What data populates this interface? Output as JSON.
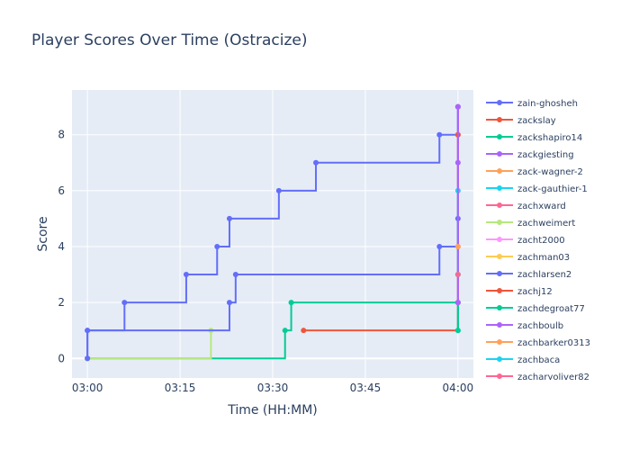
{
  "chart_data": {
    "type": "line",
    "line_shape": "step",
    "title": "Player Scores Over Time (Ostracize)",
    "xlabel": "Time (HH:MM)",
    "ylabel": "Score",
    "x_ticks": [
      "03:00",
      "03:15",
      "03:30",
      "03:45",
      "04:00"
    ],
    "x_ticks_minutes": [
      0,
      15,
      30,
      45,
      60
    ],
    "xlim_minutes": [
      -2.5,
      62.5
    ],
    "y_ticks": [
      0,
      2,
      4,
      6,
      8
    ],
    "ylim": [
      -0.7,
      9.6
    ],
    "grid": true,
    "legend_position": "right",
    "plot_bg": "#e5ecf6",
    "series": [
      {
        "name": "zain-ghosheh",
        "color": "#636efa",
        "points": [
          [
            "03:00",
            0
          ],
          [
            "03:00",
            1
          ],
          [
            "03:06",
            2
          ],
          [
            "03:16",
            3
          ],
          [
            "03:21",
            4
          ],
          [
            "03:23",
            5
          ],
          [
            "03:31",
            6
          ],
          [
            "03:37",
            7
          ],
          [
            "03:57",
            8
          ],
          [
            "04:00",
            9
          ]
        ]
      },
      {
        "name": "zackslay",
        "color": "#ef553b",
        "points": [
          [
            "03:35",
            1
          ],
          [
            "04:00",
            8
          ]
        ]
      },
      {
        "name": "zackshapiro14",
        "color": "#00cc96",
        "points": [
          [
            "03:00",
            0
          ],
          [
            "03:32",
            1
          ],
          [
            "03:33",
            2
          ],
          [
            "04:00",
            1
          ]
        ]
      },
      {
        "name": "zackgiesting",
        "color": "#ab63fa",
        "points": [
          [
            "04:00",
            2
          ],
          [
            "04:00",
            7
          ],
          [
            "04:00",
            9
          ]
        ]
      },
      {
        "name": "zack-wagner-2",
        "color": "#ffa15a",
        "points": [
          [
            "04:00",
            4
          ]
        ]
      },
      {
        "name": "zack-gauthier-1",
        "color": "#19d3f3",
        "points": [
          [
            "04:00",
            3
          ],
          [
            "04:00",
            6
          ]
        ]
      },
      {
        "name": "zachxward",
        "color": "#ff6692",
        "points": [
          [
            "04:00",
            2
          ]
        ]
      },
      {
        "name": "zachweimert",
        "color": "#b6e880",
        "points": [
          [
            "03:00",
            0
          ],
          [
            "03:20",
            1
          ]
        ]
      },
      {
        "name": "zacht2000",
        "color": "#ff97ff",
        "points": [
          [
            "04:00",
            4
          ]
        ]
      },
      {
        "name": "zachman03",
        "color": "#fecb52",
        "points": [
          [
            "03:00",
            0
          ]
        ]
      },
      {
        "name": "zachlarsen2",
        "color": "#636efa",
        "points": [
          [
            "03:00",
            0
          ],
          [
            "03:00",
            1
          ],
          [
            "03:23",
            2
          ],
          [
            "03:24",
            3
          ],
          [
            "03:57",
            4
          ],
          [
            "04:00",
            5
          ]
        ]
      },
      {
        "name": "zachj12",
        "color": "#ef553b",
        "points": [
          [
            "04:00",
            8
          ]
        ]
      },
      {
        "name": "zachdegroat77",
        "color": "#00cc96",
        "points": [
          [
            "04:00",
            1
          ],
          [
            "04:00",
            2
          ]
        ]
      },
      {
        "name": "zachboulb",
        "color": "#ab63fa",
        "points": [
          [
            "04:00",
            2
          ],
          [
            "04:00",
            9
          ]
        ]
      },
      {
        "name": "zachbarker0313",
        "color": "#ffa15a",
        "points": [
          [
            "04:00",
            4
          ]
        ]
      },
      {
        "name": "zachbaca",
        "color": "#19d3f3",
        "points": [
          [
            "04:00",
            3
          ]
        ]
      },
      {
        "name": "zacharyoliver82",
        "color": "#ff6692",
        "points": [
          [
            "04:00",
            3
          ]
        ]
      }
    ]
  }
}
